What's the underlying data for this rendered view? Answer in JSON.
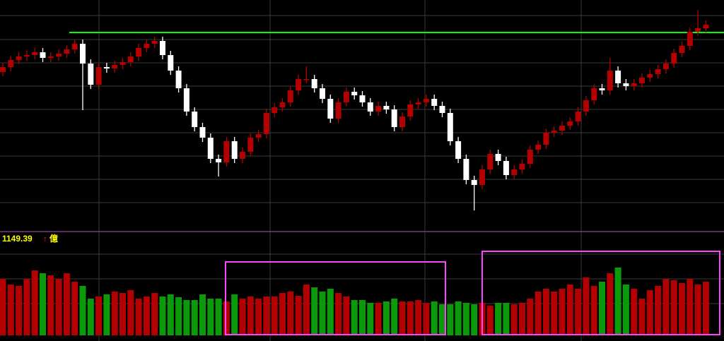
{
  "chart_data": [
    {
      "type": "candlestick",
      "open": [
        228,
        235,
        245,
        250,
        252,
        256,
        248,
        250,
        254,
        260,
        268,
        240,
        210,
        235,
        233,
        238,
        242,
        250,
        262,
        268,
        272,
        252,
        230,
        205,
        172,
        150,
        135,
        105,
        100,
        130,
        105,
        115,
        135,
        140,
        170,
        178,
        185,
        202,
        218,
        218,
        205,
        190,
        162,
        185,
        200,
        195,
        185,
        172,
        180,
        175,
        150,
        165,
        182,
        185,
        190,
        180,
        170,
        130,
        105,
        75,
        68,
        90,
        112,
        102,
        82,
        90,
        98,
        118,
        125,
        142,
        145,
        152,
        158,
        172,
        188,
        205,
        202,
        230,
        212,
        208,
        212,
        220,
        225,
        232,
        240,
        255,
        265,
        285,
        290
      ],
      "high": [
        241,
        251,
        256,
        258,
        262,
        262,
        256,
        260,
        266,
        274,
        274,
        246,
        241,
        241,
        244,
        248,
        256,
        268,
        274,
        278,
        278,
        258,
        236,
        211,
        178,
        156,
        141,
        111,
        136,
        136,
        121,
        141,
        146,
        176,
        184,
        191,
        208,
        224,
        236,
        224,
        211,
        196,
        191,
        206,
        206,
        201,
        191,
        186,
        186,
        181,
        171,
        188,
        191,
        196,
        196,
        186,
        176,
        136,
        111,
        81,
        96,
        118,
        118,
        108,
        96,
        104,
        124,
        131,
        148,
        151,
        158,
        164,
        178,
        194,
        211,
        211,
        248,
        236,
        218,
        218,
        226,
        231,
        238,
        246,
        261,
        271,
        291,
        316,
        301
      ],
      "low": [
        222,
        229,
        239,
        244,
        246,
        242,
        242,
        244,
        248,
        254,
        174,
        204,
        204,
        227,
        227,
        232,
        236,
        244,
        256,
        262,
        246,
        224,
        199,
        166,
        144,
        129,
        99,
        80,
        94,
        99,
        99,
        109,
        129,
        134,
        164,
        172,
        179,
        196,
        212,
        199,
        184,
        156,
        156,
        179,
        189,
        179,
        166,
        166,
        169,
        144,
        144,
        159,
        176,
        179,
        174,
        164,
        124,
        99,
        69,
        32,
        62,
        84,
        96,
        76,
        76,
        84,
        92,
        112,
        119,
        136,
        139,
        146,
        152,
        166,
        182,
        196,
        196,
        206,
        202,
        202,
        206,
        214,
        219,
        226,
        234,
        249,
        259,
        279,
        284
      ],
      "close": [
        235,
        245,
        250,
        252,
        256,
        248,
        250,
        254,
        260,
        268,
        240,
        210,
        235,
        233,
        238,
        242,
        250,
        262,
        268,
        272,
        252,
        230,
        205,
        172,
        150,
        135,
        105,
        100,
        130,
        105,
        115,
        135,
        140,
        170,
        178,
        185,
        202,
        218,
        218,
        205,
        190,
        162,
        185,
        200,
        195,
        185,
        172,
        180,
        175,
        150,
        165,
        182,
        185,
        190,
        180,
        170,
        130,
        105,
        75,
        68,
        90,
        112,
        102,
        82,
        90,
        98,
        118,
        125,
        142,
        145,
        152,
        158,
        172,
        188,
        205,
        202,
        230,
        212,
        208,
        212,
        220,
        225,
        232,
        240,
        255,
        265,
        285,
        290,
        295
      ],
      "ylim": [
        0,
        330
      ],
      "up_color": "#b40000",
      "down_color": "#ffffff",
      "level": 284,
      "level_color": "#00ff00"
    },
    {
      "type": "bar",
      "label": "1149.39",
      "arrow": "↑",
      "unit": "億",
      "values": [
        80,
        72,
        70,
        80,
        92,
        88,
        85,
        80,
        88,
        76,
        70,
        52,
        55,
        58,
        62,
        60,
        64,
        52,
        55,
        60,
        55,
        58,
        54,
        50,
        50,
        58,
        52,
        52,
        48,
        58,
        52,
        55,
        52,
        55,
        55,
        60,
        62,
        56,
        72,
        68,
        62,
        66,
        60,
        55,
        50,
        50,
        46,
        46,
        48,
        52,
        48,
        48,
        50,
        46,
        48,
        44,
        44,
        48,
        46,
        44,
        46,
        42,
        46,
        46,
        44,
        46,
        52,
        62,
        66,
        62,
        66,
        72,
        66,
        82,
        70,
        76,
        88,
        96,
        72,
        66,
        52,
        64,
        70,
        80,
        78,
        74,
        80,
        72,
        76
      ],
      "ylim": [
        0,
        140
      ],
      "up_color": "#b40000",
      "down_color": "#0a9a0a"
    }
  ]
}
